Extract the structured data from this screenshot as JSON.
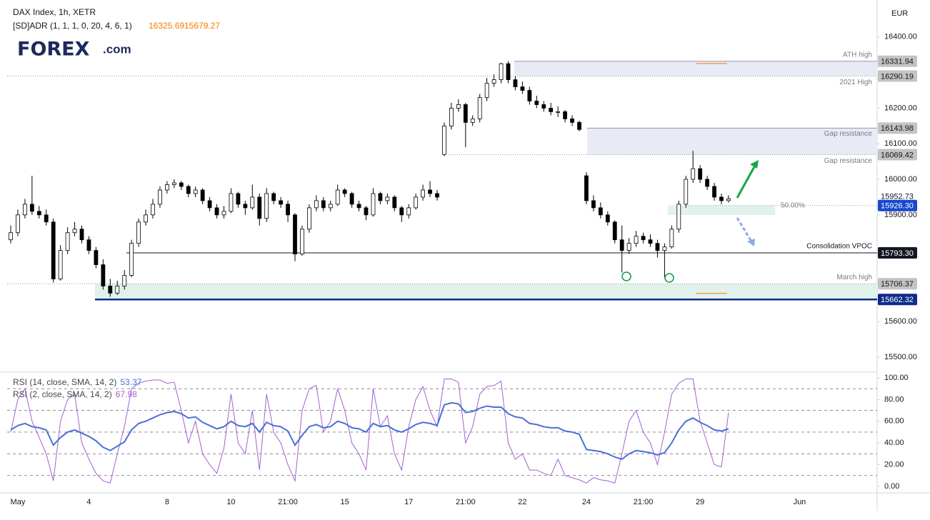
{
  "header": {
    "title": "DAX Index, 1h, XETR",
    "indicator": "[SD]ADR (1, 1, 1, 0, 20, 4, 6, 1)",
    "indicator_values": [
      "16325.69",
      "15679.27"
    ],
    "currency": "EUR",
    "logo": {
      "brand": "FOREX",
      "suffix": ".com"
    }
  },
  "chart_data": [
    {
      "type": "candlestick",
      "up_color": "#ffffff",
      "down_color": "#000000",
      "wick_color": "#000000",
      "ylim": [
        15460,
        16494
      ],
      "yticks": [
        {
          "value": 15500,
          "label": "15500.00"
        },
        {
          "value": 15600,
          "label": "15600.00"
        },
        {
          "value": 15900,
          "label": "15900.00"
        },
        {
          "value": 16000,
          "label": "16000.00"
        },
        {
          "value": 16100,
          "label": "16100.00"
        },
        {
          "value": 16200,
          "label": "16200.00"
        },
        {
          "value": 16400,
          "label": "16400.00"
        }
      ],
      "categories": [
        null,
        "May",
        null,
        null,
        null,
        null,
        null,
        null,
        null,
        null,
        null,
        "4",
        null,
        null,
        null,
        null,
        null,
        null,
        null,
        null,
        null,
        null,
        "8",
        null,
        null,
        null,
        null,
        null,
        null,
        null,
        null,
        "10",
        null,
        null,
        null,
        null,
        null,
        null,
        null,
        "21:00",
        null,
        null,
        null,
        null,
        null,
        null,
        null,
        "15",
        null,
        null,
        null,
        null,
        null,
        null,
        null,
        null,
        "17",
        null,
        null,
        null,
        null,
        null,
        null,
        null,
        "21:00",
        null,
        null,
        null,
        null,
        null,
        null,
        null,
        "22",
        null,
        null,
        null,
        null,
        null,
        null,
        null,
        null,
        "24",
        null,
        null,
        null,
        null,
        null,
        null,
        null,
        "21:00",
        null,
        null,
        null,
        null,
        null,
        null,
        null,
        "29",
        null,
        null,
        null,
        null,
        null,
        null,
        null,
        null,
        null,
        null,
        null,
        null,
        null,
        "Jun",
        null,
        null,
        null,
        null,
        null,
        null,
        null,
        null
      ],
      "candles": [
        [
          15830,
          15870,
          15820,
          15850
        ],
        [
          15850,
          15915,
          15840,
          15900
        ],
        [
          15900,
          15945,
          15890,
          15930
        ],
        [
          15930,
          16010,
          15900,
          15910
        ],
        [
          15910,
          15925,
          15890,
          15900
        ],
        [
          15900,
          15915,
          15870,
          15880
        ],
        [
          15880,
          15890,
          15710,
          15720
        ],
        [
          15720,
          15815,
          15715,
          15800
        ],
        [
          15800,
          15865,
          15790,
          15850
        ],
        [
          15850,
          15880,
          15840,
          15860
        ],
        [
          15860,
          15870,
          15820,
          15830
        ],
        [
          15830,
          15840,
          15790,
          15800
        ],
        [
          15800,
          15810,
          15750,
          15760
        ],
        [
          15760,
          15775,
          15690,
          15700
        ],
        [
          15700,
          15720,
          15670,
          15680
        ],
        [
          15680,
          15715,
          15675,
          15700
        ],
        [
          15700,
          15745,
          15690,
          15730
        ],
        [
          15730,
          15830,
          15725,
          15820
        ],
        [
          15820,
          15890,
          15810,
          15880
        ],
        [
          15880,
          15915,
          15870,
          15900
        ],
        [
          15900,
          15945,
          15890,
          15930
        ],
        [
          15930,
          15980,
          15920,
          15970
        ],
        [
          15970,
          15995,
          15960,
          15985
        ],
        [
          15985,
          16000,
          15975,
          15990
        ],
        [
          15990,
          15995,
          15970,
          15980
        ],
        [
          15980,
          15985,
          15950,
          15960
        ],
        [
          15960,
          15980,
          15950,
          15970
        ],
        [
          15970,
          15975,
          15930,
          15940
        ],
        [
          15940,
          15950,
          15910,
          15920
        ],
        [
          15920,
          15930,
          15890,
          15900
        ],
        [
          15900,
          15925,
          15890,
          15910
        ],
        [
          15910,
          15975,
          15905,
          15960
        ],
        [
          15960,
          15965,
          15920,
          15930
        ],
        [
          15930,
          15940,
          15900,
          15920
        ],
        [
          15920,
          15985,
          15915,
          15950
        ],
        [
          15950,
          15960,
          15870,
          15890
        ],
        [
          15890,
          15975,
          15880,
          15960
        ],
        [
          15960,
          15965,
          15930,
          15940
        ],
        [
          15940,
          15950,
          15920,
          15930
        ],
        [
          15930,
          15940,
          15880,
          15900
        ],
        [
          15900,
          15905,
          15770,
          15790
        ],
        [
          15790,
          15870,
          15785,
          15860
        ],
        [
          15860,
          15930,
          15850,
          15920
        ],
        [
          15920,
          15955,
          15910,
          15940
        ],
        [
          15940,
          15950,
          15910,
          15920
        ],
        [
          15920,
          15940,
          15910,
          15930
        ],
        [
          15930,
          15985,
          15925,
          15970
        ],
        [
          15970,
          15975,
          15950,
          15960
        ],
        [
          15960,
          15965,
          15920,
          15930
        ],
        [
          15930,
          15940,
          15910,
          15920
        ],
        [
          15920,
          15925,
          15885,
          15900
        ],
        [
          15900,
          15975,
          15895,
          15960
        ],
        [
          15960,
          15965,
          15930,
          15940
        ],
        [
          15940,
          15960,
          15930,
          15950
        ],
        [
          15950,
          15955,
          15910,
          15920
        ],
        [
          15920,
          15925,
          15880,
          15900
        ],
        [
          15900,
          15930,
          15890,
          15920
        ],
        [
          15920,
          15960,
          15915,
          15950
        ],
        [
          15950,
          15985,
          15940,
          15970
        ],
        [
          15970,
          15995,
          15950,
          15960
        ],
        [
          15960,
          15970,
          15940,
          15950
        ],
        [
          16070,
          16160,
          16065,
          16150
        ],
        [
          16150,
          16215,
          16140,
          16200
        ],
        [
          16200,
          16225,
          16190,
          16210
        ],
        [
          16210,
          16215,
          16090,
          16160
        ],
        [
          16160,
          16180,
          16150,
          16170
        ],
        [
          16170,
          16240,
          16160,
          16230
        ],
        [
          16230,
          16285,
          16220,
          16270
        ],
        [
          16270,
          16295,
          16260,
          16280
        ],
        [
          16280,
          16328,
          16270,
          16325
        ],
        [
          16325,
          16332,
          16270,
          16280
        ],
        [
          16280,
          16290,
          16250,
          16260
        ],
        [
          16260,
          16275,
          16240,
          16250
        ],
        [
          16250,
          16260,
          16210,
          16220
        ],
        [
          16220,
          16235,
          16200,
          16210
        ],
        [
          16210,
          16220,
          16190,
          16200
        ],
        [
          16200,
          16215,
          16180,
          16190
        ],
        [
          16190,
          16205,
          16175,
          16190
        ],
        [
          16190,
          16195,
          16160,
          16170
        ],
        [
          16170,
          16180,
          16150,
          16160
        ],
        [
          16160,
          16165,
          16135,
          16140
        ],
        [
          16010,
          16020,
          15930,
          15940
        ],
        [
          15940,
          15955,
          15910,
          15920
        ],
        [
          15920,
          15935,
          15890,
          15900
        ],
        [
          15900,
          15910,
          15870,
          15880
        ],
        [
          15880,
          15885,
          15820,
          15830
        ],
        [
          15830,
          15870,
          15738,
          15800
        ],
        [
          15800,
          15835,
          15790,
          15820
        ],
        [
          15820,
          15855,
          15810,
          15840
        ],
        [
          15840,
          15850,
          15820,
          15830
        ],
        [
          15830,
          15845,
          15810,
          15820
        ],
        [
          15820,
          15830,
          15780,
          15800
        ],
        [
          15800,
          15820,
          15724,
          15810
        ],
        [
          15810,
          15870,
          15805,
          15860
        ],
        [
          15860,
          15940,
          15850,
          15930
        ],
        [
          15930,
          16010,
          15920,
          16000
        ],
        [
          16000,
          16080,
          15990,
          16030
        ],
        [
          16030,
          16040,
          15990,
          16000
        ],
        [
          16000,
          16010,
          15970,
          15980
        ],
        [
          15980,
          15990,
          15940,
          15950
        ],
        [
          15950,
          15960,
          15930,
          15940
        ],
        [
          15940,
          15955,
          15935,
          15945
        ],
        null,
        null,
        null,
        null,
        null,
        null,
        null,
        null,
        null,
        null,
        null,
        null,
        null,
        null,
        null,
        null,
        null,
        null
      ],
      "zones": [
        {
          "from": 16290.19,
          "to": 16331.94,
          "color": "#e8eaf6"
        },
        {
          "from": 16069.42,
          "to": 16143.98,
          "color": "#e8eaf6"
        },
        {
          "from": 15900,
          "to": 15926.3,
          "color": "#e0f2e9"
        },
        {
          "from": 15662.32,
          "to": 15706.37,
          "color": "#e0f2e9"
        }
      ],
      "price_tags": [
        {
          "value": 16331.94,
          "label": "16331.94",
          "color": "#c3c3c3",
          "text_color": "#131722"
        },
        {
          "value": 16290.19,
          "label": "16290.19",
          "color": "#c3c3c3",
          "text_color": "#131722"
        },
        {
          "value": 16143.98,
          "label": "16143.98",
          "color": "#c3c3c3",
          "text_color": "#131722"
        },
        {
          "value": 16069.42,
          "label": "16069.42",
          "color": "#c3c3c3",
          "text_color": "#131722"
        },
        {
          "value": 15952.73,
          "label": "15952.73",
          "color": "#ffffff",
          "text_color": "#131722"
        },
        {
          "value": 15926.3,
          "label": "15926.30",
          "color": "#1848cc",
          "text_color": "#ffffff"
        },
        {
          "value": 15793.3,
          "label": "15793.30",
          "color": "#131722",
          "text_color": "#ffffff"
        },
        {
          "value": 15706.37,
          "label": "15706.37",
          "color": "#c3c3c3",
          "text_color": "#131722"
        },
        {
          "value": 15662.32,
          "label": "15662.32",
          "color": "#0d2b8a",
          "text_color": "#ffffff"
        }
      ],
      "annotations": [
        {
          "label": "ATH high",
          "value": 16331.94
        },
        {
          "label": "2021 High",
          "value": 16290.19
        },
        {
          "label": "Gap resistance",
          "value": 16143.98
        },
        {
          "label": "Gap resistance",
          "value": 16069.42
        },
        {
          "label": "50.00%",
          "value": 15926.3
        },
        {
          "label": "Consolidation VPOC",
          "value": 15793.3
        },
        {
          "label": "March high",
          "value": 15706.37
        }
      ],
      "adr_levels": [
        16325.69,
        15679.27
      ],
      "adr_color": "#f57c00"
    },
    {
      "type": "line",
      "ylim": [
        -6,
        104.6
      ],
      "yticks": [
        {
          "value": 0,
          "label": "0.00"
        },
        {
          "value": 20,
          "label": "20.00"
        },
        {
          "value": 40,
          "label": "40.00"
        },
        {
          "value": 60,
          "label": "60.00"
        },
        {
          "value": 80,
          "label": "80.00"
        },
        {
          "value": 100,
          "label": "100.00"
        }
      ],
      "levels": [
        90,
        70,
        50,
        30,
        10
      ],
      "series": [
        {
          "name": "RSI (14, close, SMA, 14, 2)",
          "last": "53.37",
          "color": "#4a6fd6",
          "values": [
            52,
            56,
            58,
            55,
            54,
            52,
            38,
            45,
            50,
            52,
            49,
            46,
            42,
            36,
            33,
            37,
            41,
            52,
            58,
            60,
            63,
            66,
            68,
            69,
            67,
            63,
            64,
            59,
            56,
            53,
            55,
            60,
            56,
            55,
            58,
            50,
            59,
            56,
            55,
            51,
            38,
            47,
            55,
            57,
            54,
            55,
            60,
            58,
            54,
            53,
            50,
            58,
            55,
            56,
            52,
            50,
            53,
            57,
            59,
            58,
            56,
            75,
            77,
            76,
            68,
            69,
            72,
            74,
            73,
            73,
            67,
            64,
            63,
            58,
            57,
            55,
            54,
            54,
            51,
            50,
            48,
            34,
            33,
            32,
            30,
            27,
            25,
            30,
            33,
            32,
            31,
            29,
            31,
            40,
            52,
            60,
            63,
            59,
            56,
            52,
            51,
            53,
            null,
            null,
            null,
            null,
            null,
            null,
            null,
            null,
            null,
            null,
            null,
            null,
            null,
            null,
            null,
            null,
            null,
            null
          ]
        },
        {
          "name": "RSI (2, close, SMA, 14, 2)",
          "last": "67.98",
          "color": "#a35fd0",
          "values": [
            50,
            80,
            90,
            60,
            45,
            30,
            5,
            60,
            80,
            85,
            40,
            25,
            12,
            5,
            3,
            30,
            55,
            90,
            95,
            97,
            98,
            98,
            95,
            96,
            70,
            40,
            60,
            30,
            20,
            12,
            35,
            85,
            40,
            30,
            70,
            15,
            85,
            50,
            40,
            20,
            5,
            70,
            90,
            93,
            50,
            60,
            90,
            70,
            40,
            30,
            15,
            90,
            55,
            65,
            30,
            15,
            55,
            80,
            92,
            70,
            55,
            99,
            99,
            96,
            40,
            55,
            85,
            92,
            93,
            97,
            40,
            25,
            30,
            15,
            15,
            12,
            10,
            25,
            10,
            8,
            6,
            3,
            8,
            6,
            5,
            3,
            30,
            60,
            70,
            50,
            40,
            20,
            50,
            85,
            95,
            99,
            99,
            60,
            40,
            20,
            18,
            68,
            null,
            null,
            null,
            null,
            null,
            null,
            null,
            null,
            null,
            null,
            null,
            null,
            null,
            null,
            null,
            null,
            null,
            null
          ]
        }
      ]
    }
  ]
}
